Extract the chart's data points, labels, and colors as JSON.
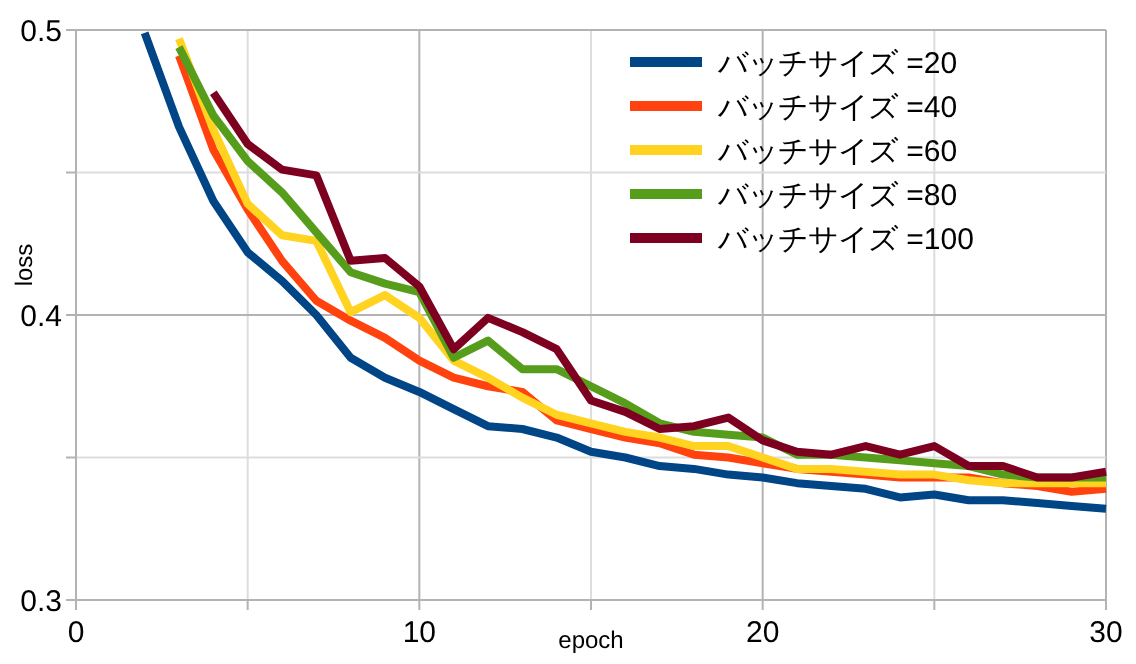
{
  "chart_data": {
    "type": "line",
    "xlabel": "epoch",
    "ylabel": "loss",
    "x": [
      2,
      3,
      4,
      5,
      6,
      7,
      8,
      9,
      10,
      11,
      12,
      13,
      14,
      15,
      16,
      17,
      18,
      19,
      20,
      21,
      22,
      23,
      24,
      25,
      26,
      27,
      28,
      29,
      30
    ],
    "xlim": [
      0,
      30
    ],
    "xticks": [
      0,
      {
        "value": 5,
        "label": null
      },
      10,
      {
        "value": 15,
        "label": null
      },
      20,
      {
        "value": 25,
        "label": null
      },
      30
    ],
    "ylim": [
      0.3,
      0.5
    ],
    "yticks": [
      0.3,
      {
        "value": 0.35,
        "label": null
      },
      0.4,
      {
        "value": 0.45,
        "label": null
      },
      0.5
    ],
    "grid": true,
    "legend": "top right",
    "marker": "none",
    "line_style": "solid",
    "series": [
      {
        "name": "バッチサイズ =20",
        "color": "#004586",
        "values": [
          0.499,
          0.466,
          0.44,
          0.422,
          0.412,
          0.4,
          0.385,
          0.378,
          0.373,
          0.367,
          0.361,
          0.36,
          0.357,
          0.352,
          0.35,
          0.347,
          0.346,
          0.344,
          0.343,
          0.341,
          0.34,
          0.339,
          0.336,
          0.337,
          0.335,
          0.335,
          0.334,
          0.333,
          0.332
        ]
      },
      {
        "name": "バッチサイズ =40",
        "color": "#ff420e",
        "values": [
          null,
          0.491,
          0.458,
          0.437,
          0.419,
          0.405,
          0.398,
          0.392,
          0.384,
          0.378,
          0.375,
          0.373,
          0.363,
          0.36,
          0.357,
          0.355,
          0.351,
          0.35,
          0.348,
          0.346,
          0.345,
          0.344,
          0.343,
          0.343,
          0.343,
          0.341,
          0.34,
          0.338,
          0.339
        ]
      },
      {
        "name": "バッチサイズ =60",
        "color": "#ffd320",
        "values": [
          null,
          0.497,
          0.465,
          0.439,
          0.428,
          0.426,
          0.401,
          0.407,
          0.399,
          0.384,
          0.378,
          0.371,
          0.365,
          0.362,
          0.359,
          0.357,
          0.354,
          0.354,
          0.35,
          0.346,
          0.346,
          0.345,
          0.344,
          0.344,
          0.342,
          0.341,
          0.341,
          0.341,
          0.341
        ]
      },
      {
        "name": "バッチサイズ =80",
        "color": "#579d1c",
        "values": [
          null,
          0.494,
          0.47,
          0.454,
          0.443,
          0.429,
          0.415,
          0.411,
          0.408,
          0.385,
          0.391,
          0.381,
          0.381,
          0.375,
          0.369,
          0.362,
          0.359,
          0.358,
          0.357,
          0.351,
          0.351,
          0.35,
          0.349,
          0.348,
          0.347,
          0.344,
          0.343,
          0.343,
          0.343
        ]
      },
      {
        "name": "バッチサイズ =100",
        "color": "#7e0021",
        "values": [
          null,
          null,
          0.478,
          0.46,
          0.451,
          0.449,
          0.419,
          0.42,
          0.41,
          0.388,
          0.399,
          0.394,
          0.388,
          0.37,
          0.366,
          0.36,
          0.361,
          0.364,
          0.356,
          0.352,
          0.351,
          0.354,
          0.351,
          0.354,
          0.347,
          0.347,
          0.343,
          0.343,
          0.345
        ]
      }
    ]
  }
}
